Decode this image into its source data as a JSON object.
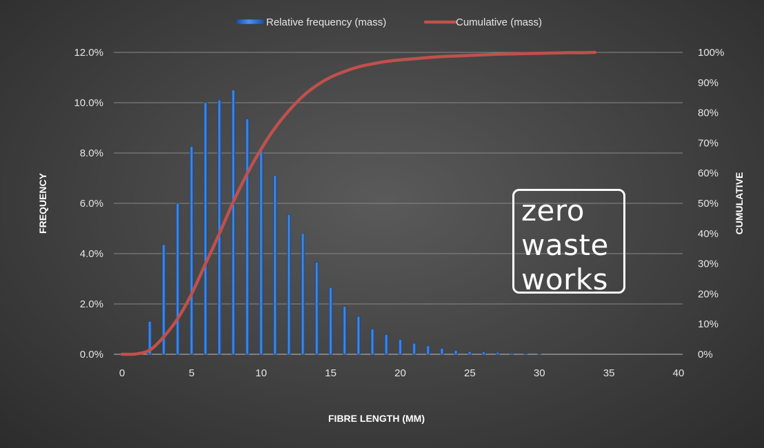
{
  "chart_data": {
    "type": "bar",
    "title": "",
    "xlabel": "FIBRE LENGTH (MM)",
    "ylabel": "FREQUENCY",
    "y2label": "CUMULATIVE",
    "xlim": [
      0,
      40
    ],
    "ylim": [
      0,
      0.12
    ],
    "y2lim": [
      0,
      1
    ],
    "x_ticks": [
      0,
      5,
      10,
      15,
      20,
      25,
      30,
      35,
      40
    ],
    "x_tick_labels": [
      "0",
      "5",
      "10",
      "15",
      "20",
      "25",
      "30",
      "35",
      "40"
    ],
    "y_ticks": [
      0,
      0.02,
      0.04,
      0.06,
      0.08,
      0.1,
      0.12
    ],
    "y_tick_labels": [
      "0.0%",
      "2.0%",
      "4.0%",
      "6.0%",
      "8.0%",
      "10.0%",
      "12.0%"
    ],
    "y2_ticks": [
      0,
      0.1,
      0.2,
      0.3,
      0.4,
      0.5,
      0.6,
      0.7,
      0.8,
      0.9,
      1.0
    ],
    "y2_tick_labels": [
      "0%",
      "10%",
      "20%",
      "30%",
      "40%",
      "50%",
      "60%",
      "70%",
      "80%",
      "90%",
      "100%"
    ],
    "grid": true,
    "legend_position": "top-center",
    "series": [
      {
        "name": "Relative frequency (mass)",
        "kind": "bar",
        "axis": "left",
        "color": "#2e75d6",
        "x": [
          1,
          2,
          3,
          4,
          5,
          6,
          7,
          8,
          9,
          10,
          11,
          12,
          13,
          14,
          15,
          16,
          17,
          18,
          19,
          20,
          21,
          22,
          23,
          24,
          25,
          26,
          27,
          28,
          29,
          30
        ],
        "values": [
          0.0005,
          0.013,
          0.0435,
          0.06,
          0.0825,
          0.1,
          0.101,
          0.105,
          0.0935,
          0.081,
          0.071,
          0.0555,
          0.048,
          0.0365,
          0.0265,
          0.019,
          0.015,
          0.01,
          0.0078,
          0.0058,
          0.0043,
          0.0033,
          0.0023,
          0.0015,
          0.001,
          0.0009,
          0.0007,
          0.0004,
          0.0003,
          0.0002
        ]
      },
      {
        "name": "Cumulative (mass)",
        "kind": "line",
        "axis": "right",
        "color": "#c0504d",
        "x": [
          0,
          1,
          2,
          3,
          4,
          5,
          6,
          7,
          8,
          9,
          10,
          11,
          12,
          13,
          14,
          15,
          16,
          17,
          18,
          19,
          20,
          21,
          22,
          23,
          24,
          25,
          26,
          27,
          28,
          29,
          30,
          31,
          32,
          33,
          34
        ],
        "values": [
          0,
          0.001,
          0.014,
          0.058,
          0.118,
          0.2,
          0.3,
          0.4,
          0.505,
          0.599,
          0.68,
          0.75,
          0.807,
          0.855,
          0.891,
          0.918,
          0.937,
          0.952,
          0.962,
          0.97,
          0.975,
          0.979,
          0.983,
          0.986,
          0.988,
          0.99,
          0.992,
          0.994,
          0.995,
          0.996,
          0.997,
          0.998,
          0.999,
          0.999,
          1.0
        ]
      }
    ]
  },
  "logo": {
    "lines": [
      "zero",
      "waste",
      "works"
    ]
  }
}
